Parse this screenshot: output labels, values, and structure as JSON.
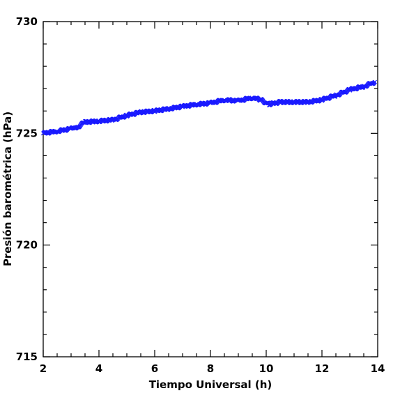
{
  "chart_data": {
    "type": "scatter",
    "title": "",
    "xlabel": "Tiempo Universal (h)",
    "ylabel": "Presión barométrica (hPa)",
    "xlim": [
      2,
      14
    ],
    "ylim": [
      715,
      730
    ],
    "x_ticks": [
      2,
      4,
      6,
      8,
      10,
      12,
      14
    ],
    "y_ticks": [
      715,
      720,
      725,
      730
    ],
    "marker": "x",
    "grid": false,
    "colors": {
      "series": "#1a1aff",
      "axes": "#000000"
    },
    "series": [
      {
        "points": [
          [
            2.0,
            725.0
          ],
          [
            2.5,
            725.1
          ],
          [
            3.0,
            725.2
          ],
          [
            3.25,
            725.3
          ],
          [
            3.5,
            725.5
          ],
          [
            4.0,
            725.55
          ],
          [
            4.5,
            725.6
          ],
          [
            5.0,
            725.8
          ],
          [
            5.5,
            725.95
          ],
          [
            6.0,
            726.0
          ],
          [
            6.5,
            726.1
          ],
          [
            7.0,
            726.2
          ],
          [
            7.5,
            726.3
          ],
          [
            8.0,
            726.35
          ],
          [
            8.5,
            726.5
          ],
          [
            9.0,
            726.45
          ],
          [
            9.5,
            726.6
          ],
          [
            9.8,
            726.5
          ],
          [
            10.1,
            726.3
          ],
          [
            10.5,
            726.4
          ],
          [
            11.0,
            726.4
          ],
          [
            11.5,
            726.4
          ],
          [
            12.0,
            726.5
          ],
          [
            12.5,
            726.7
          ],
          [
            13.0,
            726.95
          ],
          [
            13.5,
            727.1
          ],
          [
            13.9,
            727.3
          ]
        ]
      }
    ]
  }
}
